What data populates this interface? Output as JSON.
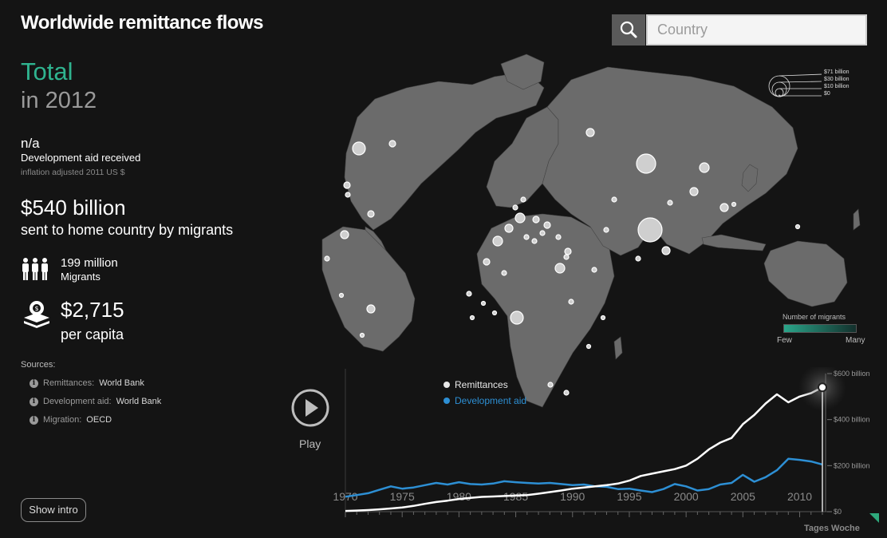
{
  "title": "Worldwide remittance flows",
  "search": {
    "placeholder": "Country",
    "icon": "search-icon"
  },
  "summary": {
    "total_label": "Total",
    "year_label": "in 2012",
    "aid_value": "n/a",
    "aid_label": "Development aid received",
    "aid_note": "inflation adjusted 2011 US $",
    "remittance_value": "$540 billion",
    "remittance_label": "sent to home country by migrants",
    "migrants_value": "199 million",
    "migrants_label": "Migrants",
    "per_capita_value": "$2,715",
    "per_capita_label": "per capita"
  },
  "sources": {
    "heading": "Sources:",
    "items": [
      {
        "label": "Remittances:",
        "source": "World Bank"
      },
      {
        "label": "Development aid:",
        "source": "World Bank"
      },
      {
        "label": "Migration:",
        "source": "OECD"
      }
    ]
  },
  "intro_button": "Show intro",
  "size_legend": {
    "labels": [
      "$71 billion",
      "$30 billion",
      "$10 billion",
      "$0"
    ]
  },
  "migrants_legend": {
    "title": "Number of migrants",
    "few": "Few",
    "many": "Many"
  },
  "player": {
    "label": "Play"
  },
  "brand": "Tages Woche",
  "colors": {
    "accent": "#2fb38f",
    "remittances": "#ffffff",
    "development_aid": "#2d8fd4",
    "land": "#6b6b6b",
    "background": "#141414"
  },
  "chart_data": {
    "type": "line",
    "x": [
      1970,
      1971,
      1972,
      1973,
      1974,
      1975,
      1976,
      1977,
      1978,
      1979,
      1980,
      1981,
      1982,
      1983,
      1984,
      1985,
      1986,
      1987,
      1988,
      1989,
      1990,
      1991,
      1992,
      1993,
      1994,
      1995,
      1996,
      1997,
      1998,
      1999,
      2000,
      2001,
      2002,
      2003,
      2004,
      2005,
      2006,
      2007,
      2008,
      2009,
      2010,
      2011,
      2012
    ],
    "series": [
      {
        "name": "Remittances",
        "color": "#ffffff",
        "values": [
          3,
          5,
          7,
          10,
          14,
          18,
          25,
          34,
          42,
          48,
          55,
          60,
          64,
          66,
          68,
          70,
          72,
          78,
          85,
          92,
          100,
          105,
          110,
          115,
          122,
          135,
          155,
          165,
          175,
          185,
          200,
          230,
          270,
          300,
          320,
          380,
          420,
          470,
          510,
          475,
          500,
          515,
          540
        ]
      },
      {
        "name": "Development aid",
        "color": "#2d8fd4",
        "values": [
          65,
          72,
          80,
          95,
          110,
          100,
          105,
          115,
          125,
          118,
          128,
          120,
          118,
          122,
          132,
          128,
          125,
          122,
          125,
          120,
          115,
          118,
          110,
          108,
          98,
          100,
          92,
          85,
          98,
          120,
          110,
          92,
          98,
          118,
          125,
          160,
          130,
          150,
          180,
          230,
          225,
          218,
          205
        ]
      }
    ],
    "x_ticks": [
      "1970",
      "1975",
      "1980",
      "1985",
      "1990",
      "1995",
      "2000",
      "2005",
      "2010"
    ],
    "y_ticks": [
      "$0",
      "$200 billion",
      "$400 billion",
      "$600 billion"
    ],
    "ylim": [
      0,
      600
    ],
    "legend": "top-left"
  }
}
